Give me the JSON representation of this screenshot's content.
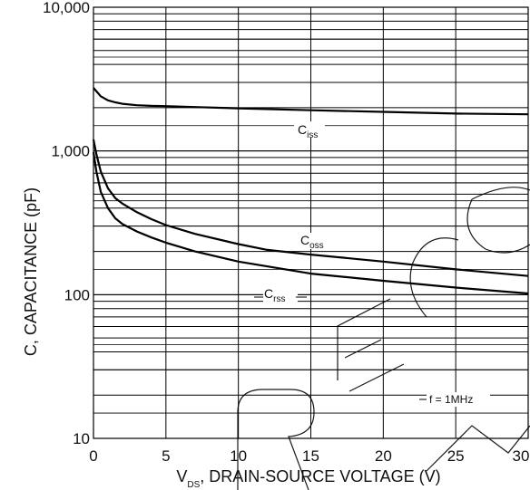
{
  "chart_data": {
    "type": "line",
    "xlabel_main": "V",
    "xlabel_sub": "DS",
    "xlabel_rest": ", DRAIN-SOURCE VOLTAGE (V)",
    "ylabel": "C, CAPACITANCE (pF)",
    "xlim": [
      0,
      30
    ],
    "ylim": [
      10,
      10000
    ],
    "yscale": "log",
    "grid": true,
    "x_ticks": [
      0,
      5,
      10,
      15,
      20,
      25,
      30
    ],
    "x_tick_labels": [
      "0",
      "5",
      "10",
      "15",
      "20",
      "25",
      "30"
    ],
    "y_ticks": [
      10,
      100,
      1000,
      10000
    ],
    "y_tick_labels": [
      "10",
      "100",
      "1,000",
      "10,000"
    ],
    "annotation": "f = 1MHz",
    "series": [
      {
        "label_main": "C",
        "label_sub": "iss",
        "x": [
          0,
          0.5,
          1,
          1.5,
          2,
          3,
          4,
          5,
          7,
          10,
          15,
          20,
          25,
          30
        ],
        "y": [
          2750,
          2400,
          2250,
          2180,
          2130,
          2080,
          2060,
          2050,
          2020,
          1980,
          1920,
          1870,
          1820,
          1800
        ]
      },
      {
        "label_main": "C",
        "label_sub": "oss",
        "x": [
          0,
          0.2,
          0.5,
          1,
          1.5,
          2,
          3,
          4,
          5,
          7,
          10,
          12,
          15,
          20,
          25,
          30
        ],
        "y": [
          1200,
          950,
          720,
          550,
          470,
          430,
          375,
          335,
          305,
          265,
          225,
          205,
          190,
          170,
          150,
          135
        ]
      },
      {
        "label_main": "C",
        "label_sub": "rss",
        "x": [
          0,
          0.2,
          0.5,
          1,
          1.5,
          2,
          3,
          4,
          5,
          7,
          10,
          15,
          20,
          25,
          30
        ],
        "y": [
          980,
          720,
          520,
          400,
          340,
          310,
          275,
          250,
          230,
          200,
          170,
          140,
          125,
          112,
          102
        ]
      }
    ]
  }
}
